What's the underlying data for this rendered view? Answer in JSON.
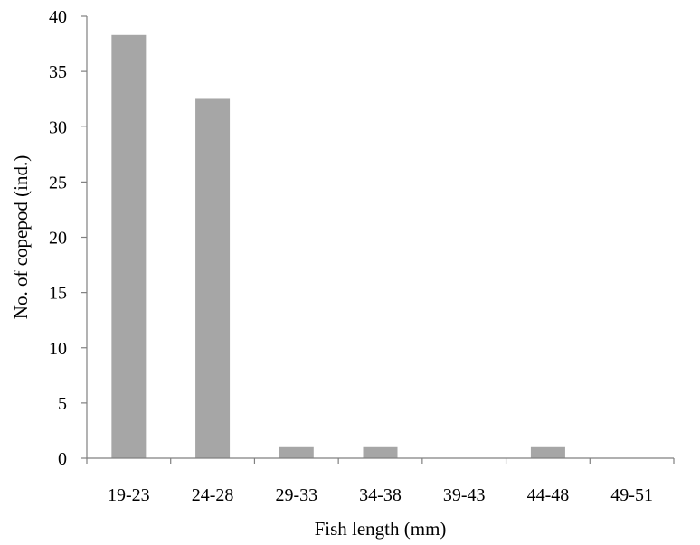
{
  "chart_data": {
    "type": "bar",
    "title": "",
    "xlabel": "Fish length (mm)",
    "ylabel": "No. of copepod (ind.)",
    "categories": [
      "19-23",
      "24-28",
      "29-33",
      "34-38",
      "39-43",
      "44-48",
      "49-51"
    ],
    "values": [
      38.3,
      32.6,
      1,
      1,
      0,
      1,
      0
    ],
    "ylim": [
      0,
      40
    ],
    "yticks": [
      "0",
      "5",
      "10",
      "15",
      "20",
      "25",
      "30",
      "35",
      "40"
    ],
    "grid": false,
    "legend": "none",
    "colors": {
      "bar": "#a6a6a6",
      "axis": "#808080",
      "text": "#000000"
    }
  }
}
